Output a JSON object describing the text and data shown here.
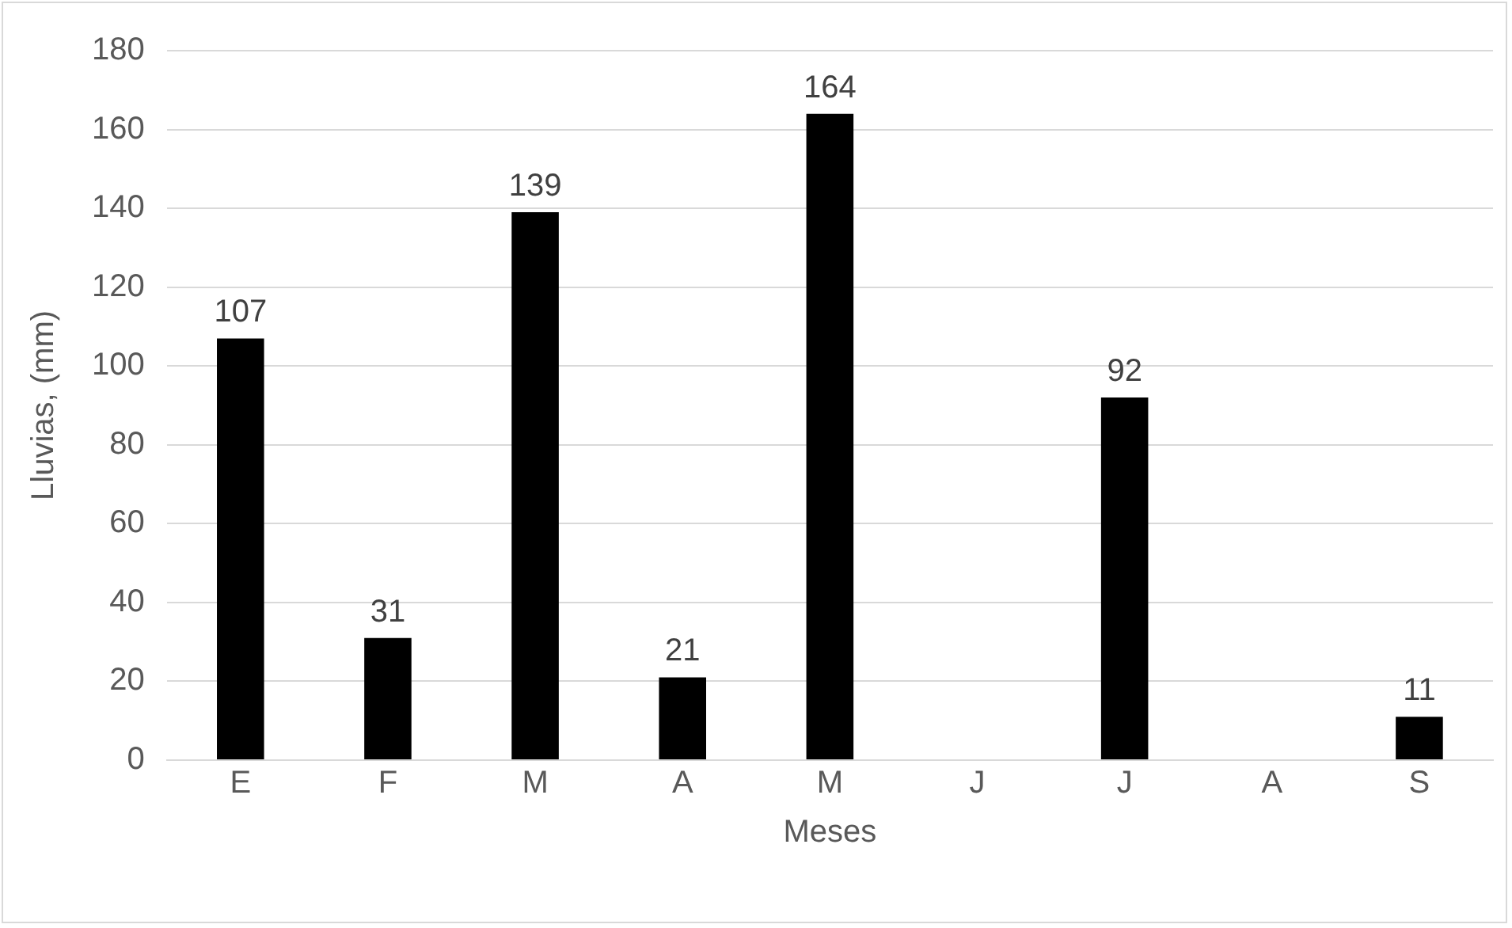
{
  "chart_data": {
    "type": "bar",
    "xlabel": "Meses",
    "ylabel": "Lluvias, (mm)",
    "categories": [
      "E",
      "F",
      "M",
      "A",
      "M",
      "J",
      "J",
      "A",
      "S"
    ],
    "values": [
      107,
      31,
      139,
      21,
      164,
      null,
      92,
      null,
      11
    ],
    "color": "#000000",
    "ylim": [
      0,
      180
    ],
    "yticks": [
      0,
      20,
      40,
      60,
      80,
      100,
      120,
      140,
      160,
      180
    ],
    "grid": "y",
    "legend": false,
    "data_labels": true
  }
}
